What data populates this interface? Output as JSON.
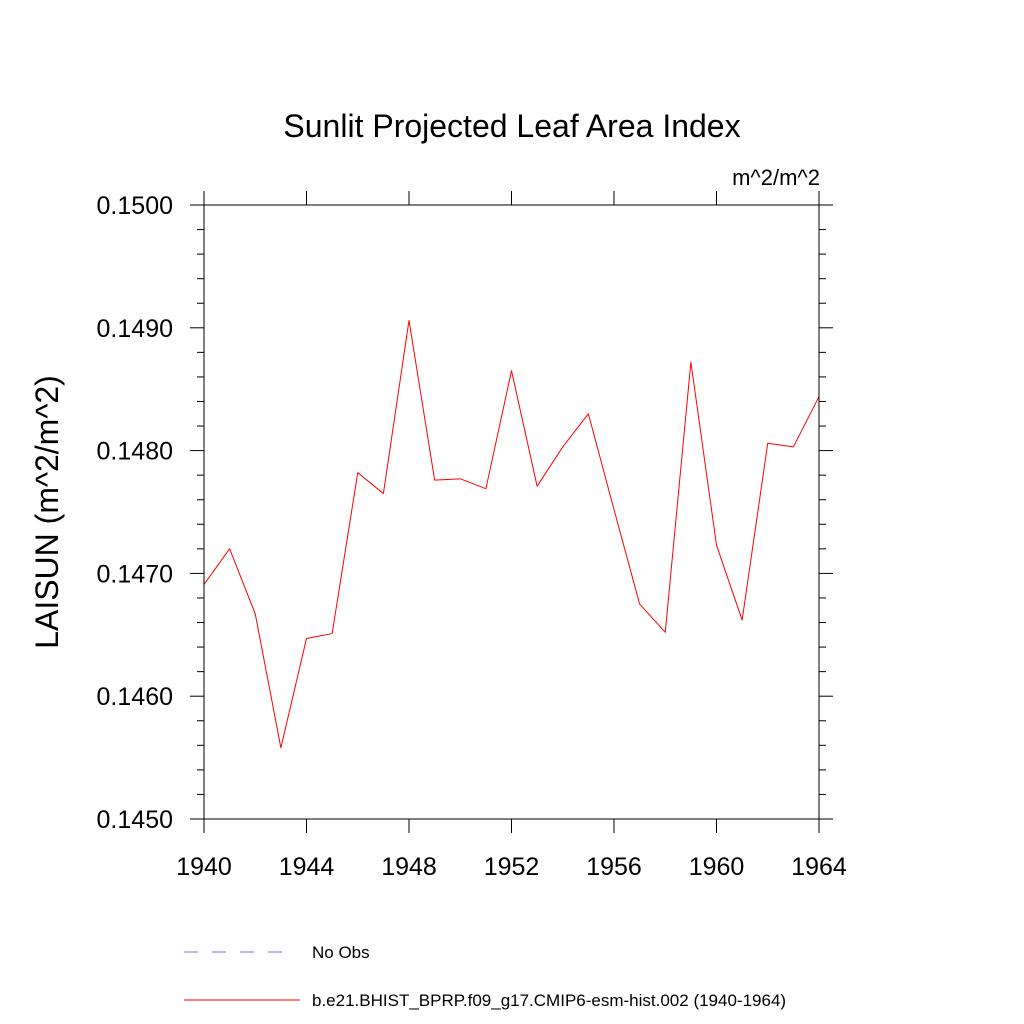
{
  "chart_data": {
    "type": "line",
    "title": "Sunlit Projected Leaf Area Index",
    "units": "m^2/m^2",
    "xlabel": "",
    "ylabel": "LAISUN  (m^2/m^2)",
    "xlim": [
      1940,
      1964
    ],
    "ylim": [
      0.145,
      0.15
    ],
    "xticks": [
      1940,
      1944,
      1948,
      1952,
      1956,
      1960,
      1964
    ],
    "xtick_labels": [
      "1940",
      "1944",
      "1948",
      "1952",
      "1956",
      "1960",
      "1964"
    ],
    "yticks": [
      0.145,
      0.146,
      0.147,
      0.148,
      0.149,
      0.15
    ],
    "ytick_labels": [
      "0.1450",
      "0.1460",
      "0.1470",
      "0.1480",
      "0.1490",
      "0.1500"
    ],
    "x": [
      1940,
      1941,
      1942,
      1943,
      1944,
      1945,
      1946,
      1947,
      1948,
      1949,
      1950,
      1951,
      1952,
      1953,
      1954,
      1955,
      1956,
      1957,
      1958,
      1959,
      1960,
      1961,
      1962,
      1963,
      1964
    ],
    "series": [
      {
        "name": "b.e21.BHIST_BPRP.f09_g17.CMIP6-esm-hist.002 (1940-1964)",
        "color": "#ff0000",
        "style": "solid",
        "values": [
          0.14691,
          0.1472,
          0.14667,
          0.14558,
          0.14647,
          0.14651,
          0.14782,
          0.14765,
          0.14906,
          0.14776,
          0.14777,
          0.14769,
          0.14865,
          0.14771,
          0.14803,
          0.1483,
          0.14752,
          0.14675,
          0.14652,
          0.14872,
          0.14723,
          0.14662,
          0.14806,
          0.14803,
          0.14844
        ]
      }
    ],
    "legend": [
      {
        "label": "No Obs",
        "color": "#7b6fd0",
        "style": "dashed"
      },
      {
        "label": "b.e21.BHIST_BPRP.f09_g17.CMIP6-esm-hist.002 (1940-1964)",
        "color": "#ff0000",
        "style": "solid"
      }
    ],
    "legend_position": "bottom",
    "grid": false
  }
}
